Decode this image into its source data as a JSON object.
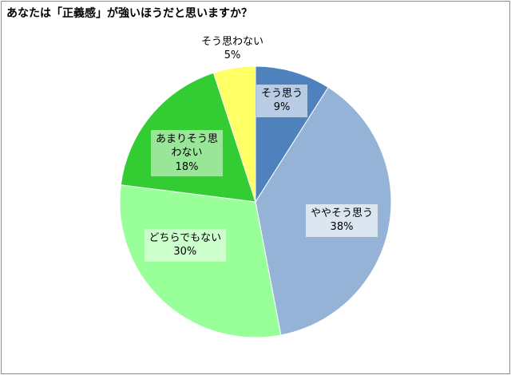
{
  "title": "あなたは「正義感」が強いほうだと思いますか？",
  "chart_data": {
    "type": "pie",
    "start_angle_deg": 0,
    "direction": "clockwise",
    "slices": [
      {
        "label_lines": [
          "そう思う"
        ],
        "pct_label": "9%",
        "value": 9,
        "color": "#4f81bd",
        "box_color": "#b8cce4"
      },
      {
        "label_lines": [
          "ややそう思う"
        ],
        "pct_label": "38%",
        "value": 38,
        "color": "#95b3d7",
        "box_color": "#dce6f1"
      },
      {
        "label_lines": [
          "どちらでもない"
        ],
        "pct_label": "30%",
        "value": 30,
        "color": "#99ff99",
        "box_color": "#ccffcc"
      },
      {
        "label_lines": [
          "あまりそう思",
          "わない"
        ],
        "pct_label": "18%",
        "value": 18,
        "color": "#33cc33",
        "box_color": "#99e699"
      },
      {
        "label_lines": [
          "そう思わない"
        ],
        "pct_label": "5%",
        "value": 5,
        "color": "#ffff66",
        "box_color": ""
      }
    ]
  }
}
